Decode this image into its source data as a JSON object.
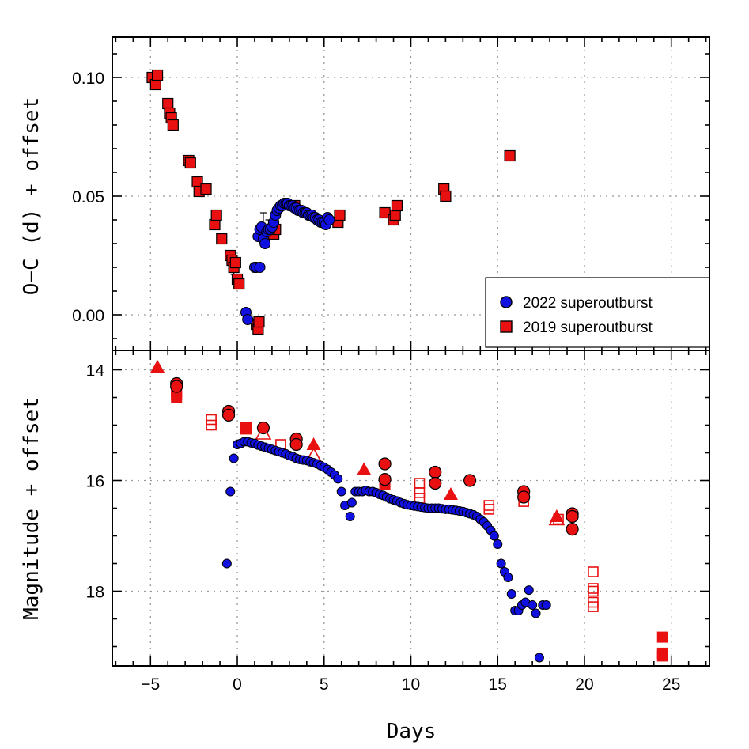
{
  "xlabel": "Days",
  "legend": {
    "entries": [
      {
        "label": "2022 superoutburst",
        "color": "#1010e0",
        "marker": "circle"
      },
      {
        "label": "2019 superoutburst",
        "color": "#e81010",
        "marker": "square"
      }
    ]
  },
  "colors": {
    "blue": "#1010e0",
    "red": "#e81010",
    "frame": "#000000",
    "grid": "#9a9a9a"
  },
  "chart_data": [
    {
      "type": "scatter",
      "panel": "top",
      "ylabel": "O−C (d) + offset",
      "xlim": [
        -7.2,
        27.2
      ],
      "ylim": [
        -0.015,
        0.117
      ],
      "xticks": [
        -5,
        0,
        5,
        10,
        15,
        20,
        25
      ],
      "yticks": [
        0.0,
        0.05,
        0.1
      ],
      "ytick_labels": [
        "0.00",
        "0.05",
        "0.10"
      ],
      "grid": true,
      "legend_placement": "bottom-right",
      "series": [
        {
          "name": "2022 superoutburst",
          "marker": "circle",
          "color": "#1010e0",
          "points": [
            [
              0.5,
              0.001
            ],
            [
              0.6,
              -0.002
            ],
            [
              1.0,
              0.02
            ],
            [
              1.1,
              0.02
            ],
            [
              1.3,
              0.02
            ],
            [
              1.2,
              0.033
            ],
            [
              1.3,
              0.036
            ],
            [
              1.4,
              0.037
            ],
            [
              1.5,
              0.032
            ],
            [
              1.6,
              0.03
            ],
            [
              1.7,
              0.035
            ],
            [
              1.8,
              0.036
            ],
            [
              1.9,
              0.036
            ],
            [
              2.0,
              0.037
            ],
            [
              2.1,
              0.039
            ],
            [
              2.2,
              0.042
            ],
            [
              2.3,
              0.044
            ],
            [
              2.4,
              0.045
            ],
            [
              2.5,
              0.046
            ],
            [
              2.6,
              0.046
            ],
            [
              2.7,
              0.047
            ],
            [
              2.8,
              0.047
            ],
            [
              2.9,
              0.047
            ],
            [
              3.0,
              0.046
            ],
            [
              3.1,
              0.046
            ],
            [
              3.2,
              0.046
            ],
            [
              3.3,
              0.045
            ],
            [
              3.4,
              0.045
            ],
            [
              3.5,
              0.044
            ],
            [
              3.6,
              0.044
            ],
            [
              3.7,
              0.044
            ],
            [
              3.8,
              0.043
            ],
            [
              3.9,
              0.043
            ],
            [
              4.0,
              0.043
            ],
            [
              4.1,
              0.042
            ],
            [
              4.2,
              0.042
            ],
            [
              4.3,
              0.042
            ],
            [
              4.4,
              0.041
            ],
            [
              4.5,
              0.041
            ],
            [
              4.6,
              0.04
            ],
            [
              4.7,
              0.04
            ],
            [
              4.8,
              0.039
            ],
            [
              4.9,
              0.039
            ],
            [
              5.0,
              0.039
            ],
            [
              5.1,
              0.038
            ],
            [
              5.2,
              0.041
            ],
            [
              5.3,
              0.04
            ]
          ],
          "error_bars": [
            [
              1.0,
              0.02,
              0.002
            ],
            [
              1.5,
              0.036,
              0.007
            ],
            [
              1.8,
              0.036,
              0.004
            ]
          ]
        },
        {
          "name": "2019 superoutburst",
          "marker": "square",
          "color": "#e81010",
          "points": [
            [
              -4.9,
              0.1
            ],
            [
              -4.7,
              0.097
            ],
            [
              -4.6,
              0.101
            ],
            [
              -4.0,
              0.089
            ],
            [
              -3.9,
              0.085
            ],
            [
              -3.8,
              0.083
            ],
            [
              -3.7,
              0.08
            ],
            [
              -2.8,
              0.065
            ],
            [
              -2.7,
              0.064
            ],
            [
              -2.3,
              0.056
            ],
            [
              -2.2,
              0.052
            ],
            [
              -1.8,
              0.053
            ],
            [
              -1.3,
              0.038
            ],
            [
              -1.2,
              0.042
            ],
            [
              -0.9,
              0.032
            ],
            [
              -0.4,
              0.025
            ],
            [
              -0.3,
              0.023
            ],
            [
              -0.2,
              0.02
            ],
            [
              -0.1,
              0.022
            ],
            [
              0.0,
              0.015
            ],
            [
              0.1,
              0.013
            ],
            [
              1.1,
              -0.004
            ],
            [
              1.2,
              -0.006
            ],
            [
              1.25,
              -0.003
            ],
            [
              1.6,
              0.034
            ],
            [
              2.1,
              0.034
            ],
            [
              2.2,
              0.036
            ],
            [
              3.3,
              0.046
            ],
            [
              5.8,
              0.039
            ],
            [
              5.9,
              0.042
            ],
            [
              8.5,
              0.043
            ],
            [
              9.0,
              0.04
            ],
            [
              9.1,
              0.042
            ],
            [
              9.2,
              0.046
            ],
            [
              11.9,
              0.053
            ],
            [
              12.0,
              0.05
            ],
            [
              15.7,
              0.067
            ]
          ],
          "error_bars": [
            [
              -0.4,
              0.025,
              0.002
            ],
            [
              -0.3,
              0.023,
              0.004
            ],
            [
              -0.2,
              0.02,
              0.003
            ],
            [
              1.25,
              -0.003,
              0.002
            ]
          ]
        }
      ]
    },
    {
      "type": "scatter",
      "panel": "bottom",
      "ylabel": "Magnitude + offset",
      "xlim": [
        -7.2,
        27.2
      ],
      "ylim": [
        19.35,
        13.65
      ],
      "y_inverted": true,
      "xticks": [
        -5,
        0,
        5,
        10,
        15,
        20,
        25
      ],
      "xtick_labels": [
        "−5",
        "0",
        "5",
        "10",
        "15",
        "20",
        "25"
      ],
      "yticks": [
        14,
        16,
        18
      ],
      "ytick_labels": [
        "14",
        "16",
        "18"
      ],
      "grid": true,
      "series": [
        {
          "marker": "circle",
          "color": "#1010e0",
          "points": [
            [
              -0.6,
              17.5
            ],
            [
              -0.4,
              16.2
            ],
            [
              -0.2,
              15.6
            ],
            [
              0.0,
              15.35
            ],
            [
              0.2,
              15.33
            ],
            [
              0.4,
              15.3
            ],
            [
              0.6,
              15.3
            ],
            [
              0.8,
              15.32
            ],
            [
              1.0,
              15.33
            ],
            [
              1.2,
              15.36
            ],
            [
              1.4,
              15.38
            ],
            [
              1.6,
              15.4
            ],
            [
              1.8,
              15.42
            ],
            [
              2.0,
              15.44
            ],
            [
              2.2,
              15.46
            ],
            [
              2.4,
              15.48
            ],
            [
              2.6,
              15.5
            ],
            [
              2.8,
              15.52
            ],
            [
              3.0,
              15.55
            ],
            [
              3.2,
              15.57
            ],
            [
              3.4,
              15.6
            ],
            [
              3.6,
              15.62
            ],
            [
              3.8,
              15.63
            ],
            [
              4.0,
              15.64
            ],
            [
              4.2,
              15.66
            ],
            [
              4.4,
              15.68
            ],
            [
              4.6,
              15.7
            ],
            [
              4.8,
              15.73
            ],
            [
              5.0,
              15.76
            ],
            [
              5.2,
              15.8
            ],
            [
              5.4,
              15.85
            ],
            [
              5.6,
              15.9
            ],
            [
              5.8,
              15.97
            ],
            [
              6.0,
              16.2
            ],
            [
              6.2,
              16.45
            ],
            [
              6.5,
              16.65
            ],
            [
              6.6,
              16.4
            ],
            [
              6.8,
              16.2
            ],
            [
              7.0,
              16.2
            ],
            [
              7.2,
              16.2
            ],
            [
              7.4,
              16.18
            ],
            [
              7.6,
              16.2
            ],
            [
              7.8,
              16.2
            ],
            [
              8.0,
              16.22
            ],
            [
              8.2,
              16.25
            ],
            [
              8.4,
              16.27
            ],
            [
              8.6,
              16.3
            ],
            [
              8.8,
              16.33
            ],
            [
              9.0,
              16.35
            ],
            [
              9.2,
              16.37
            ],
            [
              9.4,
              16.4
            ],
            [
              9.6,
              16.42
            ],
            [
              9.8,
              16.44
            ],
            [
              10.0,
              16.45
            ],
            [
              10.2,
              16.46
            ],
            [
              10.4,
              16.47
            ],
            [
              10.6,
              16.48
            ],
            [
              10.8,
              16.49
            ],
            [
              11.0,
              16.5
            ],
            [
              11.2,
              16.5
            ],
            [
              11.4,
              16.5
            ],
            [
              11.6,
              16.5
            ],
            [
              11.8,
              16.51
            ],
            [
              12.0,
              16.52
            ],
            [
              12.2,
              16.52
            ],
            [
              12.4,
              16.53
            ],
            [
              12.6,
              16.54
            ],
            [
              12.8,
              16.55
            ],
            [
              13.0,
              16.56
            ],
            [
              13.2,
              16.58
            ],
            [
              13.4,
              16.6
            ],
            [
              13.6,
              16.62
            ],
            [
              13.8,
              16.65
            ],
            [
              14.0,
              16.7
            ],
            [
              14.2,
              16.75
            ],
            [
              14.4,
              16.82
            ],
            [
              14.6,
              16.9
            ],
            [
              14.8,
              17.0
            ],
            [
              15.0,
              17.15
            ],
            [
              15.2,
              17.5
            ],
            [
              15.4,
              17.65
            ],
            [
              15.6,
              17.75
            ],
            [
              15.8,
              18.05
            ],
            [
              16.0,
              18.35
            ],
            [
              16.2,
              18.35
            ],
            [
              16.4,
              18.25
            ],
            [
              16.6,
              18.2
            ],
            [
              16.8,
              17.98
            ],
            [
              17.0,
              18.25
            ],
            [
              17.2,
              18.4
            ],
            [
              17.4,
              19.2
            ],
            [
              17.6,
              18.25
            ],
            [
              17.8,
              18.25
            ]
          ]
        },
        {
          "marker": "filled-circle",
          "color": "#e81010",
          "points": [
            [
              -3.5,
              14.25
            ],
            [
              -3.5,
              14.3
            ],
            [
              -0.5,
              14.75
            ],
            [
              -0.5,
              14.82
            ],
            [
              1.5,
              15.05
            ],
            [
              3.4,
              15.25
            ],
            [
              3.4,
              15.35
            ],
            [
              8.5,
              15.7
            ],
            [
              8.5,
              15.98
            ],
            [
              11.4,
              15.85
            ],
            [
              11.4,
              16.05
            ],
            [
              13.4,
              16.0
            ],
            [
              16.5,
              16.2
            ],
            [
              16.5,
              16.3
            ],
            [
              19.3,
              16.6
            ],
            [
              19.3,
              16.65
            ],
            [
              19.3,
              16.88
            ]
          ]
        },
        {
          "marker": "filled-square",
          "color": "#e81010",
          "points": [
            [
              -3.5,
              14.4
            ],
            [
              -3.5,
              14.45
            ],
            [
              -3.5,
              14.5
            ],
            [
              0.5,
              15.05
            ],
            [
              0.5,
              15.07
            ],
            [
              8.5,
              16.02
            ],
            [
              8.5,
              16.07
            ],
            [
              24.5,
              18.83
            ],
            [
              24.5,
              19.12
            ],
            [
              24.5,
              19.17
            ]
          ]
        },
        {
          "marker": "filled-triangle",
          "color": "#e81010",
          "points": [
            [
              -4.6,
              13.95
            ],
            [
              4.4,
              15.35
            ],
            [
              7.3,
              15.8
            ],
            [
              12.3,
              16.25
            ],
            [
              18.4,
              16.65
            ]
          ]
        },
        {
          "marker": "open-triangle",
          "color": "#e81010",
          "points": [
            [
              1.5,
              15.15
            ],
            [
              4.4,
              15.55
            ],
            [
              18.4,
              16.7
            ]
          ]
        },
        {
          "marker": "open-square",
          "color": "#e81010",
          "points": [
            [
              -1.5,
              14.9
            ],
            [
              -1.5,
              15.0
            ],
            [
              2.5,
              15.35
            ],
            [
              10.5,
              16.05
            ],
            [
              10.5,
              16.22
            ],
            [
              10.5,
              16.32
            ],
            [
              14.5,
              16.45
            ],
            [
              14.5,
              16.52
            ],
            [
              16.5,
              16.38
            ],
            [
              18.5,
              16.7
            ],
            [
              20.5,
              17.65
            ],
            [
              20.5,
              17.95
            ],
            [
              20.5,
              18.0
            ],
            [
              20.5,
              18.2
            ],
            [
              20.5,
              18.28
            ]
          ]
        }
      ]
    }
  ]
}
